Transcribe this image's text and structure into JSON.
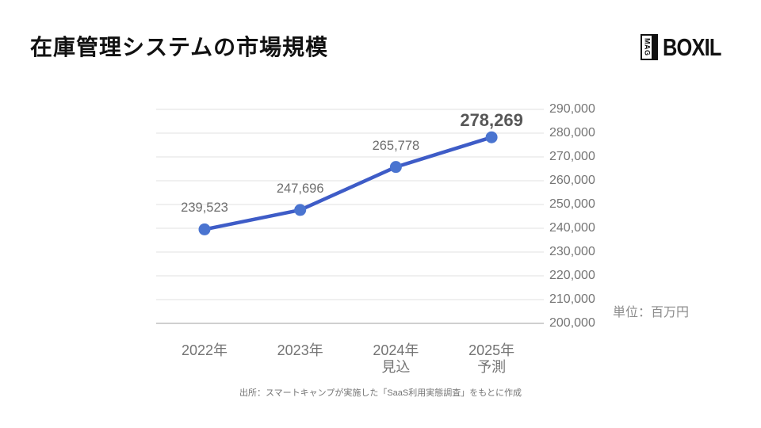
{
  "page": {
    "title": "在庫管理システムの市場規模",
    "logo": {
      "mag": "MAG",
      "brand": "BOXIL"
    },
    "unit_label": "単位：百万円",
    "source_note": "出所：スマートキャンプが実施した「SaaS利用実態調査」をもとに作成"
  },
  "colors": {
    "line": "#3e5cc7",
    "point": "#4a74d0",
    "grid": "#e8e8e8",
    "grid_bottom": "#cfcfcf"
  },
  "chart_data": {
    "type": "line",
    "title": "在庫管理システムの市場規模",
    "categories": [
      "2022年",
      "2023年",
      "2024年\n見込",
      "2025年\n予測"
    ],
    "values": [
      239523,
      247696,
      265778,
      278269
    ],
    "value_labels": [
      "239,523",
      "247,696",
      "265,778",
      "278,269"
    ],
    "emphasized_index": 3,
    "ylim": [
      200000,
      290000
    ],
    "ytick_step": 10000,
    "ytick_labels": [
      "200,000",
      "210,000",
      "220,000",
      "230,000",
      "240,000",
      "250,000",
      "260,000",
      "270,000",
      "280,000",
      "290,000"
    ],
    "xlabel": "",
    "ylabel": "単位：百万円",
    "grid": true,
    "legend": "none"
  }
}
